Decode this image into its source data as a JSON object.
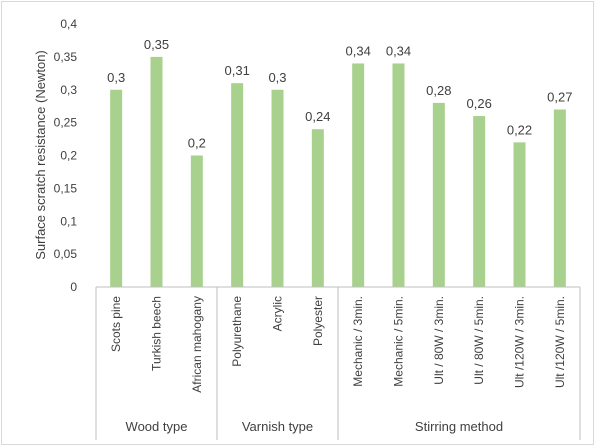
{
  "chart_data": {
    "type": "bar",
    "ylabel": "Surface scratch resistance (Newton)",
    "xlabel": "",
    "ylim": [
      0,
      0.4
    ],
    "yticks": [
      "0",
      "0,05",
      "0,1",
      "0,15",
      "0,2",
      "0,25",
      "0,3",
      "0,35",
      "0,4"
    ],
    "grid": false,
    "bar_color": "#a9d18e",
    "groups": [
      {
        "label": "Wood type",
        "categories": [
          "Scots pine",
          "Turkish beech",
          "African mahogany"
        ]
      },
      {
        "label": "Varnish type",
        "categories": [
          "Polyurethane",
          "Acrylic",
          "Polyester"
        ]
      },
      {
        "label": "Stirring method",
        "categories": [
          "Mechanic / 3min.",
          "Mechanic / 5min.",
          "Ult / 80W / 3min.",
          "Ult / 80W / 5min.",
          "Ult /120W / 3min.",
          "Ult /120W / 5min."
        ]
      }
    ],
    "categories": [
      "Scots pine",
      "Turkish beech",
      "African mahogany",
      "Polyurethane",
      "Acrylic",
      "Polyester",
      "Mechanic / 3min.",
      "Mechanic / 5min.",
      "Ult / 80W / 3min.",
      "Ult / 80W / 5min.",
      "Ult /120W / 3min.",
      "Ult /120W / 5min."
    ],
    "values": [
      0.3,
      0.35,
      0.2,
      0.31,
      0.3,
      0.24,
      0.34,
      0.34,
      0.28,
      0.26,
      0.22,
      0.27
    ],
    "data_labels": [
      "0,3",
      "0,35",
      "0,2",
      "0,31",
      "0,3",
      "0,24",
      "0,34",
      "0,34",
      "0,28",
      "0,26",
      "0,22",
      "0,27"
    ]
  }
}
